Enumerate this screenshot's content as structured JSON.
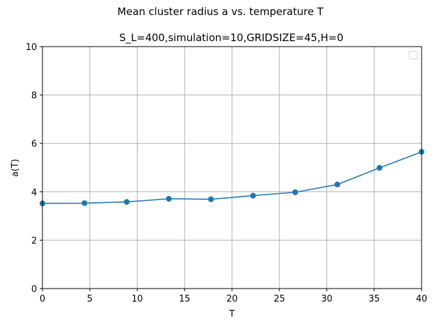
{
  "chart_data": {
    "type": "line",
    "suptitle": "Mean cluster radius a vs. temperature T",
    "title": "S_L=400,simulation=10,GRIDSIZE=45,H=0",
    "xlabel": "T",
    "ylabel": "a(T)",
    "xlim": [
      0,
      40
    ],
    "ylim": [
      0,
      10
    ],
    "xticks": [
      0,
      5,
      10,
      15,
      20,
      25,
      30,
      35,
      40
    ],
    "yticks": [
      0,
      2,
      4,
      6,
      8,
      10
    ],
    "grid": true,
    "legend": {
      "location": "upper right",
      "entries": []
    },
    "series": [
      {
        "color": "#1f77b4",
        "marker": "circle",
        "x": [
          0,
          4.44,
          8.89,
          13.33,
          17.78,
          22.22,
          26.67,
          31.11,
          35.56,
          40
        ],
        "y": [
          3.52,
          3.53,
          3.58,
          3.71,
          3.69,
          3.84,
          3.98,
          4.3,
          4.99,
          5.65
        ]
      }
    ]
  }
}
